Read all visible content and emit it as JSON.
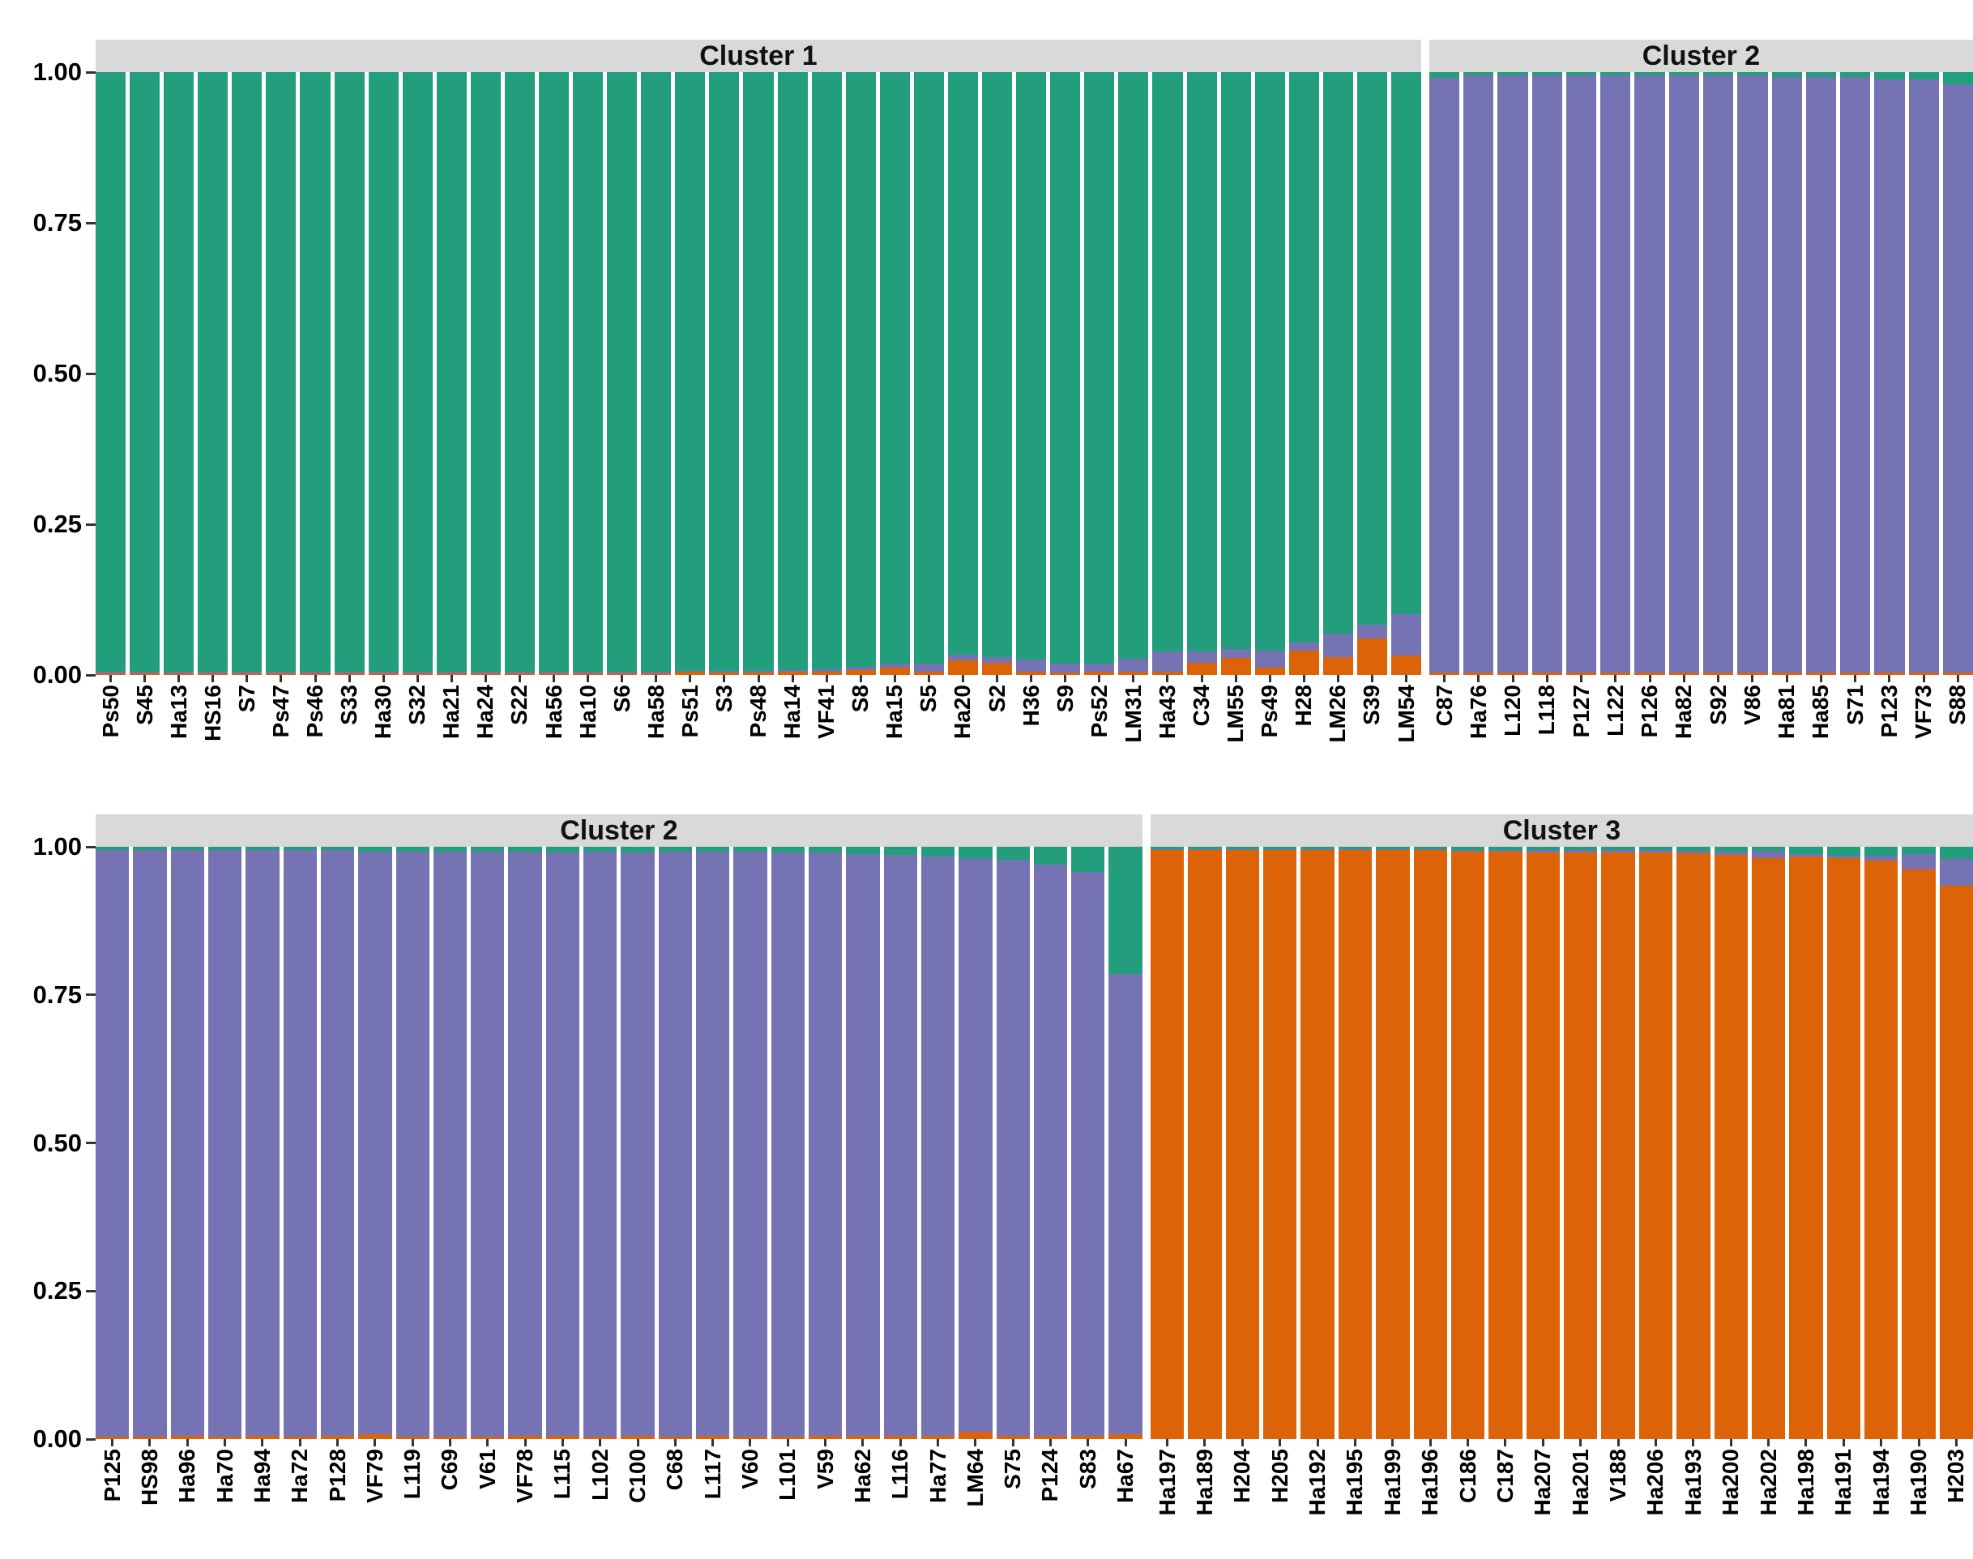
{
  "chart_data": {
    "type": "bar",
    "subtype": "stacked-admixture-structure-plot",
    "title": "",
    "xlabel": "",
    "ylabel": "",
    "ylim": [
      0,
      1
    ],
    "yticks": [
      "1.00",
      "0.75",
      "0.50",
      "0.25",
      "0.00"
    ],
    "grid": false,
    "legend_position": "none",
    "bar_format": [
      "label",
      "green",
      "purple",
      "orange"
    ],
    "stack_order_bottom_to_top": [
      "orange",
      "purple",
      "green"
    ],
    "colors": {
      "green": "#239E7D",
      "purple": "#7673B5",
      "orange": "#DD6309",
      "strip_bg": "#D9D9D9",
      "axis_text": "#000000"
    },
    "rows": [
      {
        "panels": [
          {
            "title": "Cluster 1",
            "bars": [
              [
                "Ps50",
                0.995,
                0.002,
                0.003
              ],
              [
                "S45",
                0.995,
                0.002,
                0.003
              ],
              [
                "Ha13",
                0.995,
                0.002,
                0.003
              ],
              [
                "HS16",
                0.995,
                0.002,
                0.003
              ],
              [
                "S7",
                0.995,
                0.002,
                0.003
              ],
              [
                "Ps47",
                0.995,
                0.002,
                0.003
              ],
              [
                "Ps46",
                0.995,
                0.002,
                0.003
              ],
              [
                "S33",
                0.995,
                0.002,
                0.003
              ],
              [
                "Ha30",
                0.995,
                0.002,
                0.003
              ],
              [
                "S32",
                0.995,
                0.002,
                0.003
              ],
              [
                "Ha21",
                0.995,
                0.002,
                0.003
              ],
              [
                "Ha24",
                0.995,
                0.002,
                0.003
              ],
              [
                "S22",
                0.995,
                0.002,
                0.003
              ],
              [
                "Ha56",
                0.995,
                0.002,
                0.003
              ],
              [
                "Ha10",
                0.995,
                0.002,
                0.003
              ],
              [
                "S6",
                0.995,
                0.002,
                0.003
              ],
              [
                "Ha58",
                0.995,
                0.002,
                0.003
              ],
              [
                "Ps51",
                0.993,
                0.002,
                0.005
              ],
              [
                "S3",
                0.993,
                0.003,
                0.004
              ],
              [
                "Ps48",
                0.993,
                0.003,
                0.004
              ],
              [
                "Ha14",
                0.992,
                0.003,
                0.005
              ],
              [
                "VF41",
                0.99,
                0.004,
                0.006
              ],
              [
                "S8",
                0.987,
                0.005,
                0.008
              ],
              [
                "Ha15",
                0.981,
                0.007,
                0.012
              ],
              [
                "S5",
                0.981,
                0.013,
                0.006
              ],
              [
                "Ha20",
                0.967,
                0.009,
                0.024
              ],
              [
                "S2",
                0.971,
                0.009,
                0.02
              ],
              [
                "H36",
                0.975,
                0.02,
                0.005
              ],
              [
                "S9",
                0.981,
                0.015,
                0.004
              ],
              [
                "Ps52",
                0.981,
                0.013,
                0.006
              ],
              [
                "LM31",
                0.973,
                0.021,
                0.006
              ],
              [
                "Ha43",
                0.961,
                0.034,
                0.005
              ],
              [
                "C34",
                0.961,
                0.019,
                0.02
              ],
              [
                "LM55",
                0.957,
                0.015,
                0.028
              ],
              [
                "Ps49",
                0.959,
                0.029,
                0.012
              ],
              [
                "H28",
                0.946,
                0.014,
                0.04
              ],
              [
                "LM26",
                0.931,
                0.039,
                0.03
              ],
              [
                "S39",
                0.917,
                0.023,
                0.06
              ],
              [
                "LM54",
                0.899,
                0.069,
                0.032
              ]
            ]
          },
          {
            "title": "Cluster 2",
            "bars": [
              [
                "C87",
                0.01,
                0.986,
                0.004
              ],
              [
                "Ha76",
                0.006,
                0.99,
                0.004
              ],
              [
                "L120",
                0.006,
                0.99,
                0.004
              ],
              [
                "L118",
                0.006,
                0.99,
                0.004
              ],
              [
                "P127",
                0.006,
                0.99,
                0.004
              ],
              [
                "L122",
                0.006,
                0.99,
                0.004
              ],
              [
                "P126",
                0.006,
                0.99,
                0.004
              ],
              [
                "Ha82",
                0.006,
                0.99,
                0.004
              ],
              [
                "S92",
                0.006,
                0.99,
                0.004
              ],
              [
                "V86",
                0.006,
                0.99,
                0.004
              ],
              [
                "Ha81",
                0.008,
                0.988,
                0.004
              ],
              [
                "Ha85",
                0.008,
                0.988,
                0.004
              ],
              [
                "S71",
                0.008,
                0.988,
                0.004
              ],
              [
                "P123",
                0.012,
                0.984,
                0.004
              ],
              [
                "VF73",
                0.012,
                0.984,
                0.004
              ],
              [
                "S88",
                0.02,
                0.976,
                0.004
              ]
            ]
          }
        ]
      },
      {
        "panels": [
          {
            "title": "Cluster 2",
            "bars": [
              [
                "P125",
                0.006,
                0.99,
                0.004
              ],
              [
                "HS98",
                0.006,
                0.99,
                0.004
              ],
              [
                "Ha96",
                0.006,
                0.988,
                0.006
              ],
              [
                "Ha70",
                0.006,
                0.99,
                0.004
              ],
              [
                "Ha94",
                0.006,
                0.988,
                0.006
              ],
              [
                "Ha72",
                0.006,
                0.99,
                0.004
              ],
              [
                "P128",
                0.006,
                0.988,
                0.006
              ],
              [
                "VF79",
                0.008,
                0.984,
                0.008
              ],
              [
                "L119",
                0.008,
                0.988,
                0.004
              ],
              [
                "C69",
                0.008,
                0.988,
                0.004
              ],
              [
                "V61",
                0.008,
                0.988,
                0.004
              ],
              [
                "VF78",
                0.008,
                0.986,
                0.006
              ],
              [
                "L115",
                0.01,
                0.984,
                0.006
              ],
              [
                "L102",
                0.008,
                0.988,
                0.004
              ],
              [
                "C100",
                0.01,
                0.984,
                0.006
              ],
              [
                "C68",
                0.008,
                0.988,
                0.004
              ],
              [
                "L117",
                0.008,
                0.986,
                0.006
              ],
              [
                "V60",
                0.008,
                0.988,
                0.004
              ],
              [
                "L101",
                0.01,
                0.986,
                0.004
              ],
              [
                "V59",
                0.01,
                0.984,
                0.006
              ],
              [
                "Ha62",
                0.012,
                0.982,
                0.006
              ],
              [
                "L116",
                0.014,
                0.98,
                0.006
              ],
              [
                "Ha77",
                0.016,
                0.978,
                0.006
              ],
              [
                "LM64",
                0.02,
                0.968,
                0.012
              ],
              [
                "S75",
                0.022,
                0.972,
                0.006
              ],
              [
                "P124",
                0.03,
                0.964,
                0.006
              ],
              [
                "S83",
                0.042,
                0.952,
                0.006
              ],
              [
                "Ha67",
                0.215,
                0.777,
                0.008
              ]
            ]
          },
          {
            "title": "Cluster 3",
            "bars": [
              [
                "Ha197",
                0.004,
                0.002,
                0.994
              ],
              [
                "Ha189",
                0.004,
                0.002,
                0.994
              ],
              [
                "H204",
                0.004,
                0.002,
                0.994
              ],
              [
                "H205",
                0.004,
                0.002,
                0.994
              ],
              [
                "Ha192",
                0.004,
                0.002,
                0.994
              ],
              [
                "Ha195",
                0.004,
                0.002,
                0.994
              ],
              [
                "Ha199",
                0.004,
                0.002,
                0.994
              ],
              [
                "Ha196",
                0.004,
                0.002,
                0.994
              ],
              [
                "C186",
                0.005,
                0.003,
                0.992
              ],
              [
                "C187",
                0.005,
                0.003,
                0.992
              ],
              [
                "Ha207",
                0.006,
                0.003,
                0.991
              ],
              [
                "Ha201",
                0.006,
                0.004,
                0.99
              ],
              [
                "V188",
                0.006,
                0.004,
                0.99
              ],
              [
                "Ha206",
                0.006,
                0.004,
                0.99
              ],
              [
                "Ha193",
                0.007,
                0.004,
                0.989
              ],
              [
                "Ha200",
                0.008,
                0.005,
                0.987
              ],
              [
                "Ha202",
                0.007,
                0.012,
                0.981
              ],
              [
                "Ha198",
                0.012,
                0.004,
                0.984
              ],
              [
                "Ha191",
                0.015,
                0.004,
                0.981
              ],
              [
                "Ha194",
                0.015,
                0.008,
                0.977
              ],
              [
                "Ha190",
                0.012,
                0.026,
                0.962
              ],
              [
                "H203",
                0.02,
                0.046,
                0.934
              ]
            ]
          }
        ]
      }
    ]
  }
}
